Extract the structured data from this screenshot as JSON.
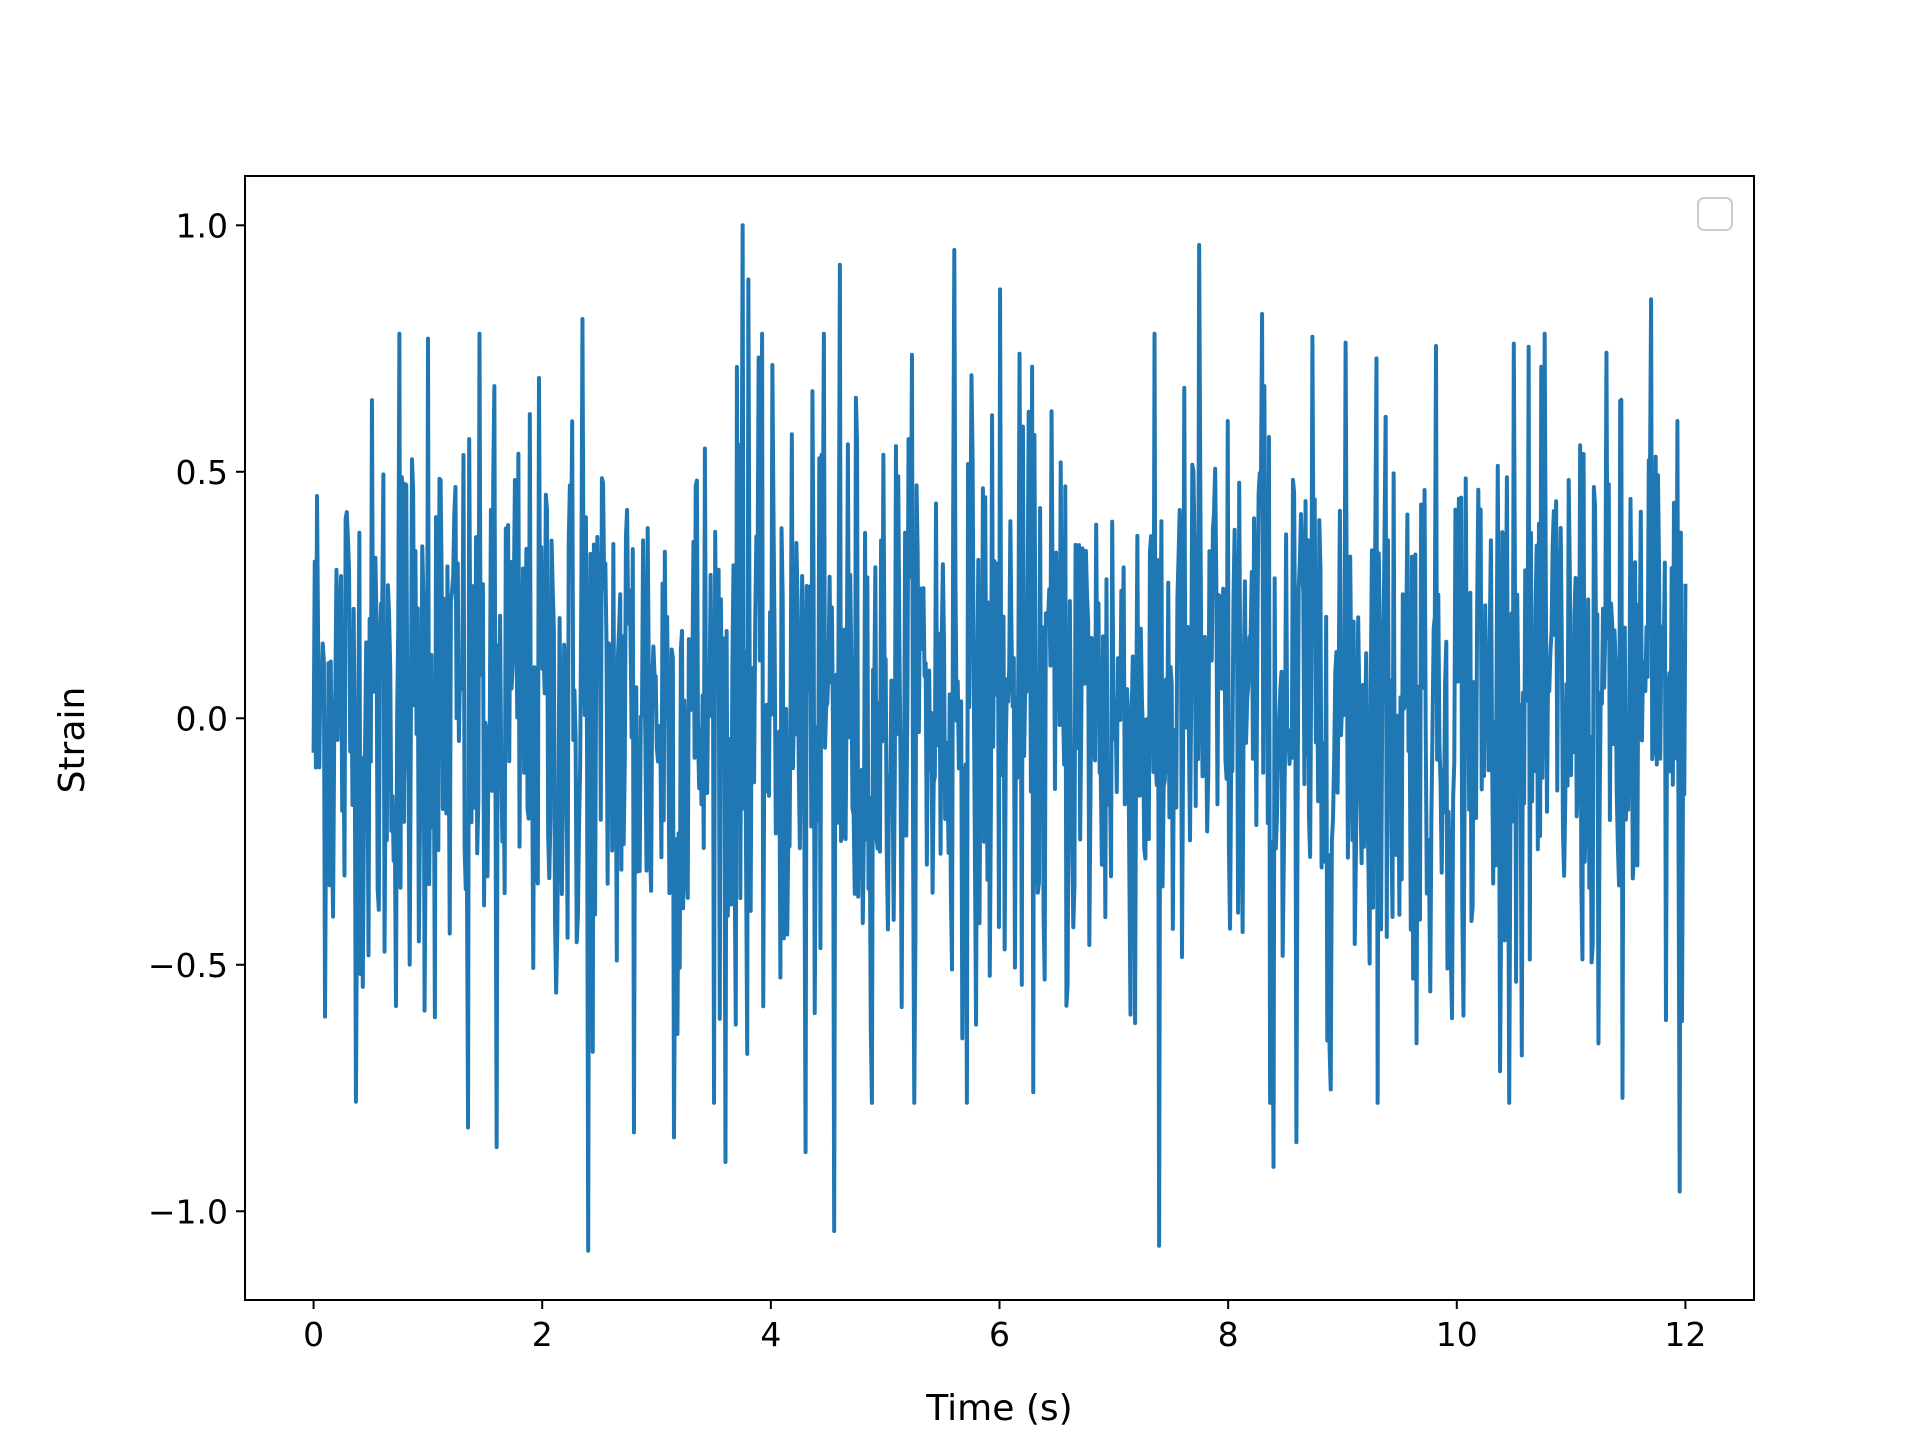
{
  "chart_data": {
    "type": "line",
    "title": "",
    "xlabel": "Time (s)",
    "ylabel": "Strain",
    "xlim": [
      -0.6,
      12.6
    ],
    "ylim": [
      -1.18,
      1.1
    ],
    "xticks": [
      0,
      2,
      4,
      6,
      8,
      10,
      12
    ],
    "xtick_labels": [
      "0",
      "2",
      "4",
      "6",
      "8",
      "10",
      "12"
    ],
    "yticks": [
      -1.0,
      -0.5,
      0.0,
      0.5,
      1.0
    ],
    "ytick_labels": [
      "−1.0",
      "−0.5",
      "0.0",
      "0.5",
      "1.0"
    ],
    "grid": false,
    "legend": {
      "placement": "upper right",
      "entries": []
    },
    "series": [
      {
        "color": "#1f77b4",
        "x_range": [
          0,
          12
        ],
        "sample_count": 1200,
        "noise_band": [
          -0.4,
          0.45
        ],
        "peaks": [
          {
            "x": 3.75,
            "y": 1.0
          },
          {
            "x": 3.8,
            "y": 0.89
          },
          {
            "x": 4.6,
            "y": 0.92
          },
          {
            "x": 5.6,
            "y": 0.95
          },
          {
            "x": 7.4,
            "y": 0.98
          },
          {
            "x": 7.75,
            "y": 0.96
          },
          {
            "x": 6.0,
            "y": 0.87
          },
          {
            "x": 11.7,
            "y": 0.85
          },
          {
            "x": 2.35,
            "y": 0.81
          },
          {
            "x": 0.75,
            "y": 0.78
          },
          {
            "x": 1.0,
            "y": 0.77
          },
          {
            "x": 8.3,
            "y": 0.82
          },
          {
            "x": 9.3,
            "y": 0.73
          },
          {
            "x": 10.5,
            "y": 0.76
          },
          {
            "x": 2.4,
            "y": -1.08
          },
          {
            "x": 4.55,
            "y": -1.04
          },
          {
            "x": 7.4,
            "y": -1.07
          },
          {
            "x": 11.95,
            "y": -0.96
          },
          {
            "x": 8.4,
            "y": -0.91
          },
          {
            "x": 3.6,
            "y": -0.9
          },
          {
            "x": 4.3,
            "y": -0.88
          },
          {
            "x": 1.6,
            "y": -0.87
          },
          {
            "x": 1.35,
            "y": -0.83
          },
          {
            "x": 3.15,
            "y": -0.85
          },
          {
            "x": 2.8,
            "y": -0.84
          },
          {
            "x": 8.6,
            "y": -0.86
          },
          {
            "x": 11.45,
            "y": -0.77
          }
        ]
      }
    ]
  }
}
